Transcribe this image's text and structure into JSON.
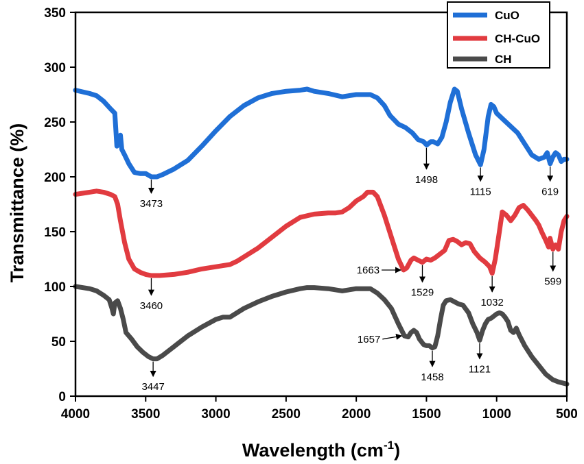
{
  "chart_data": {
    "type": "line",
    "title": "",
    "xlabel": "Wavelength (cm",
    "xlabel_superscript": "-1",
    "xlabel_suffix": ")",
    "ylabel": "Transmittance (%)",
    "xlim": [
      4000,
      500
    ],
    "ylim": [
      0,
      350
    ],
    "x_ticks": [
      "4000",
      "3500",
      "3000",
      "2500",
      "2000",
      "1500",
      "1000",
      "500"
    ],
    "y_ticks": [
      "0",
      "50",
      "100",
      "150",
      "200",
      "250",
      "300",
      "350"
    ],
    "legend_position": "top-right",
    "series": [
      {
        "name": "CuO",
        "color": "#1f6fd6",
        "points": [
          [
            4000,
            279
          ],
          [
            3900,
            276
          ],
          [
            3850,
            274
          ],
          [
            3800,
            269
          ],
          [
            3750,
            262
          ],
          [
            3720,
            258
          ],
          [
            3705,
            228
          ],
          [
            3695,
            236
          ],
          [
            3680,
            238
          ],
          [
            3670,
            225
          ],
          [
            3650,
            220
          ],
          [
            3620,
            212
          ],
          [
            3580,
            204
          ],
          [
            3540,
            203
          ],
          [
            3500,
            203
          ],
          [
            3460,
            200
          ],
          [
            3420,
            200
          ],
          [
            3380,
            202
          ],
          [
            3300,
            207
          ],
          [
            3200,
            215
          ],
          [
            3100,
            228
          ],
          [
            3000,
            242
          ],
          [
            2900,
            255
          ],
          [
            2800,
            265
          ],
          [
            2700,
            272
          ],
          [
            2600,
            276
          ],
          [
            2500,
            278
          ],
          [
            2400,
            279
          ],
          [
            2350,
            280
          ],
          [
            2300,
            278
          ],
          [
            2200,
            276
          ],
          [
            2100,
            273
          ],
          [
            2050,
            274
          ],
          [
            2000,
            275
          ],
          [
            1900,
            275
          ],
          [
            1850,
            272
          ],
          [
            1800,
            265
          ],
          [
            1760,
            256
          ],
          [
            1700,
            248
          ],
          [
            1650,
            245
          ],
          [
            1600,
            240
          ],
          [
            1560,
            234
          ],
          [
            1520,
            232
          ],
          [
            1498,
            229
          ],
          [
            1470,
            232
          ],
          [
            1450,
            232
          ],
          [
            1420,
            230
          ],
          [
            1390,
            236
          ],
          [
            1360,
            250
          ],
          [
            1330,
            268
          ],
          [
            1300,
            280
          ],
          [
            1280,
            278
          ],
          [
            1250,
            262
          ],
          [
            1200,
            240
          ],
          [
            1150,
            220
          ],
          [
            1115,
            211
          ],
          [
            1090,
            225
          ],
          [
            1060,
            255
          ],
          [
            1040,
            266
          ],
          [
            1020,
            264
          ],
          [
            1000,
            258
          ],
          [
            950,
            252
          ],
          [
            900,
            246
          ],
          [
            850,
            240
          ],
          [
            800,
            230
          ],
          [
            750,
            220
          ],
          [
            700,
            216
          ],
          [
            660,
            218
          ],
          [
            640,
            222
          ],
          [
            619,
            212
          ],
          [
            600,
            218
          ],
          [
            580,
            222
          ],
          [
            560,
            220
          ],
          [
            540,
            214
          ],
          [
            520,
            216
          ],
          [
            500,
            216
          ]
        ]
      },
      {
        "name": "CH-CuO",
        "color": "#e13b40",
        "points": [
          [
            4000,
            184
          ],
          [
            3950,
            185
          ],
          [
            3900,
            186
          ],
          [
            3850,
            187
          ],
          [
            3800,
            186
          ],
          [
            3750,
            184
          ],
          [
            3720,
            182
          ],
          [
            3700,
            175
          ],
          [
            3680,
            160
          ],
          [
            3650,
            140
          ],
          [
            3620,
            125
          ],
          [
            3580,
            116
          ],
          [
            3540,
            113
          ],
          [
            3500,
            111
          ],
          [
            3460,
            110
          ],
          [
            3400,
            110
          ],
          [
            3300,
            111
          ],
          [
            3200,
            113
          ],
          [
            3100,
            116
          ],
          [
            3000,
            118
          ],
          [
            2950,
            119
          ],
          [
            2900,
            120
          ],
          [
            2850,
            123
          ],
          [
            2800,
            127
          ],
          [
            2700,
            135
          ],
          [
            2600,
            145
          ],
          [
            2500,
            155
          ],
          [
            2400,
            163
          ],
          [
            2300,
            166
          ],
          [
            2200,
            167
          ],
          [
            2150,
            167
          ],
          [
            2100,
            168
          ],
          [
            2050,
            172
          ],
          [
            2000,
            178
          ],
          [
            1950,
            182
          ],
          [
            1920,
            186
          ],
          [
            1880,
            186
          ],
          [
            1850,
            182
          ],
          [
            1800,
            165
          ],
          [
            1750,
            145
          ],
          [
            1700,
            125
          ],
          [
            1663,
            115
          ],
          [
            1640,
            117
          ],
          [
            1610,
            124
          ],
          [
            1590,
            126
          ],
          [
            1560,
            124
          ],
          [
            1529,
            122
          ],
          [
            1500,
            125
          ],
          [
            1470,
            124
          ],
          [
            1440,
            126
          ],
          [
            1400,
            130
          ],
          [
            1370,
            133
          ],
          [
            1340,
            142
          ],
          [
            1310,
            143
          ],
          [
            1280,
            141
          ],
          [
            1250,
            138
          ],
          [
            1220,
            140
          ],
          [
            1190,
            139
          ],
          [
            1160,
            132
          ],
          [
            1120,
            126
          ],
          [
            1080,
            122
          ],
          [
            1050,
            118
          ],
          [
            1032,
            112
          ],
          [
            1010,
            125
          ],
          [
            990,
            142
          ],
          [
            960,
            168
          ],
          [
            930,
            165
          ],
          [
            900,
            160
          ],
          [
            870,
            165
          ],
          [
            840,
            172
          ],
          [
            810,
            174
          ],
          [
            780,
            170
          ],
          [
            750,
            165
          ],
          [
            720,
            160
          ],
          [
            700,
            156
          ],
          [
            680,
            150
          ],
          [
            650,
            142
          ],
          [
            630,
            136
          ],
          [
            620,
            144
          ],
          [
            599,
            134
          ],
          [
            580,
            138
          ],
          [
            560,
            134
          ],
          [
            540,
            150
          ],
          [
            520,
            160
          ],
          [
            500,
            164
          ]
        ]
      },
      {
        "name": "CH",
        "color": "#4a4a4a",
        "points": [
          [
            4000,
            100
          ],
          [
            3950,
            99
          ],
          [
            3900,
            98
          ],
          [
            3850,
            96
          ],
          [
            3800,
            92
          ],
          [
            3760,
            88
          ],
          [
            3740,
            80
          ],
          [
            3730,
            75
          ],
          [
            3720,
            85
          ],
          [
            3700,
            87
          ],
          [
            3680,
            80
          ],
          [
            3660,
            70
          ],
          [
            3640,
            58
          ],
          [
            3620,
            55
          ],
          [
            3600,
            52
          ],
          [
            3560,
            45
          ],
          [
            3520,
            40
          ],
          [
            3480,
            36
          ],
          [
            3447,
            34
          ],
          [
            3420,
            34
          ],
          [
            3380,
            37
          ],
          [
            3300,
            45
          ],
          [
            3200,
            55
          ],
          [
            3100,
            63
          ],
          [
            3000,
            70
          ],
          [
            2950,
            72
          ],
          [
            2900,
            72
          ],
          [
            2850,
            76
          ],
          [
            2800,
            80
          ],
          [
            2700,
            86
          ],
          [
            2600,
            91
          ],
          [
            2500,
            95
          ],
          [
            2400,
            98
          ],
          [
            2350,
            99
          ],
          [
            2300,
            99
          ],
          [
            2200,
            98
          ],
          [
            2150,
            97
          ],
          [
            2100,
            96
          ],
          [
            2050,
            97
          ],
          [
            2000,
            98
          ],
          [
            1950,
            98
          ],
          [
            1900,
            98
          ],
          [
            1850,
            94
          ],
          [
            1800,
            88
          ],
          [
            1750,
            80
          ],
          [
            1700,
            66
          ],
          [
            1657,
            55
          ],
          [
            1630,
            54
          ],
          [
            1610,
            58
          ],
          [
            1590,
            60
          ],
          [
            1570,
            58
          ],
          [
            1550,
            52
          ],
          [
            1520,
            47
          ],
          [
            1500,
            46
          ],
          [
            1480,
            46
          ],
          [
            1458,
            44
          ],
          [
            1440,
            45
          ],
          [
            1420,
            55
          ],
          [
            1400,
            70
          ],
          [
            1380,
            83
          ],
          [
            1360,
            87
          ],
          [
            1330,
            88
          ],
          [
            1300,
            86
          ],
          [
            1270,
            84
          ],
          [
            1240,
            83
          ],
          [
            1200,
            76
          ],
          [
            1170,
            66
          ],
          [
            1140,
            58
          ],
          [
            1121,
            51
          ],
          [
            1100,
            60
          ],
          [
            1080,
            66
          ],
          [
            1060,
            70
          ],
          [
            1040,
            71
          ],
          [
            1020,
            73
          ],
          [
            1000,
            75
          ],
          [
            980,
            76
          ],
          [
            960,
            75
          ],
          [
            940,
            72
          ],
          [
            920,
            68
          ],
          [
            900,
            60
          ],
          [
            880,
            58
          ],
          [
            860,
            62
          ],
          [
            840,
            56
          ],
          [
            800,
            46
          ],
          [
            750,
            36
          ],
          [
            700,
            28
          ],
          [
            650,
            20
          ],
          [
            600,
            15
          ],
          [
            560,
            13
          ],
          [
            530,
            12
          ],
          [
            500,
            11
          ]
        ]
      }
    ],
    "annotations": [
      {
        "label": "3473",
        "x": 3460,
        "y_from": 200,
        "y_to": 185,
        "dir": "down"
      },
      {
        "label": "1498",
        "x": 1500,
        "y_from": 229,
        "y_to": 207,
        "dir": "down"
      },
      {
        "label": "1115",
        "x": 1115,
        "y_from": 211,
        "y_to": 196,
        "dir": "down"
      },
      {
        "label": "619",
        "x": 619,
        "y_from": 212,
        "y_to": 196,
        "dir": "down"
      },
      {
        "label": "3460",
        "x": 3460,
        "y_from": 110,
        "y_to": 92,
        "dir": "down"
      },
      {
        "label": "1663",
        "x": 1663,
        "y_from": 115,
        "y_to": 115,
        "dir": "left"
      },
      {
        "label": "1529",
        "x": 1529,
        "y_from": 122,
        "y_to": 104,
        "dir": "down"
      },
      {
        "label": "1032",
        "x": 1032,
        "y_from": 112,
        "y_to": 95,
        "dir": "down"
      },
      {
        "label": "599",
        "x": 599,
        "y_from": 134,
        "y_to": 114,
        "dir": "down"
      },
      {
        "label": "1657",
        "x": 1657,
        "y_from": 55,
        "y_to": 52,
        "dir": "left"
      },
      {
        "label": "1458",
        "x": 1458,
        "y_from": 44,
        "y_to": 27,
        "dir": "down"
      },
      {
        "label": "1121",
        "x": 1121,
        "y_from": 51,
        "y_to": 34,
        "dir": "down"
      },
      {
        "label": "3447",
        "x": 3447,
        "y_from": 34,
        "y_to": 18,
        "dir": "down"
      }
    ]
  }
}
